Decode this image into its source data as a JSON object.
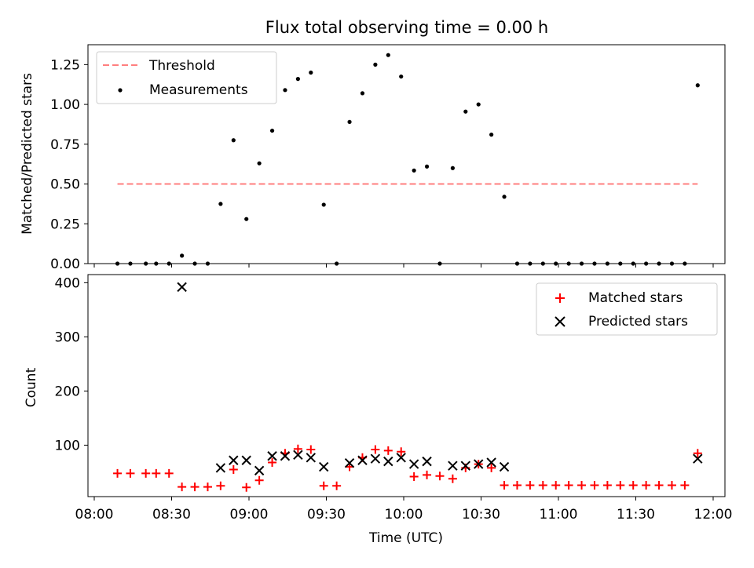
{
  "chart_data": [
    {
      "type": "scatter",
      "title": "Flux total observing time = 0.00 h",
      "xlabel": "",
      "ylabel": "Matched/Predicted stars",
      "xlim": [
        "08:00",
        "12:00"
      ],
      "ylim": [
        0,
        1.375
      ],
      "yticks": [
        "0.00",
        "0.25",
        "0.50",
        "0.75",
        "1.00",
        "1.25"
      ],
      "yticks_values": [
        0,
        0.25,
        0.5,
        0.75,
        1.0,
        1.25
      ],
      "legend": {
        "position": "top-left",
        "entries": [
          "Threshold",
          "Measurements"
        ]
      },
      "threshold": {
        "name": "Threshold",
        "value": 0.5,
        "x_start": "08:09",
        "x_end": "11:54",
        "color": "#ff7f7f"
      },
      "series": [
        {
          "name": "Measurements",
          "color": "#000000",
          "x": [
            "08:09",
            "08:14",
            "08:20",
            "08:24",
            "08:29",
            "08:34",
            "08:39",
            "08:44",
            "08:49",
            "08:54",
            "08:59",
            "09:04",
            "09:09",
            "09:14",
            "09:19",
            "09:24",
            "09:29",
            "09:34",
            "09:39",
            "09:44",
            "09:49",
            "09:54",
            "09:59",
            "10:04",
            "10:09",
            "10:14",
            "10:19",
            "10:24",
            "10:29",
            "10:34",
            "10:39",
            "10:44",
            "10:49",
            "10:54",
            "10:59",
            "11:04",
            "11:09",
            "11:14",
            "11:19",
            "11:24",
            "11:29",
            "11:34",
            "11:39",
            "11:44",
            "11:49",
            "11:54"
          ],
          "y": [
            0,
            0,
            0,
            0,
            0,
            0.05,
            0,
            0,
            0.375,
            0.775,
            0.28,
            0.63,
            0.835,
            1.09,
            1.16,
            1.2,
            0.37,
            0,
            0.89,
            1.07,
            1.25,
            1.31,
            1.175,
            0.585,
            0.61,
            0,
            0.6,
            0.955,
            1.0,
            0.81,
            0.42,
            0,
            0,
            0,
            0,
            0,
            0,
            0,
            0,
            0,
            0,
            0,
            0,
            0,
            0,
            1.12
          ]
        }
      ]
    },
    {
      "type": "scatter",
      "title": "",
      "xlabel": "Time (UTC)",
      "ylabel": "Count",
      "xlim": [
        "08:00",
        "12:00"
      ],
      "ylim": [
        5,
        415
      ],
      "xticks": [
        "08:00",
        "08:30",
        "09:00",
        "09:30",
        "10:00",
        "10:30",
        "11:00",
        "11:30",
        "12:00"
      ],
      "yticks": [
        "100",
        "200",
        "300",
        "400"
      ],
      "yticks_values": [
        100,
        200,
        300,
        400
      ],
      "legend": {
        "position": "top-right",
        "entries": [
          "Matched stars",
          "Predicted stars"
        ]
      },
      "series": [
        {
          "name": "Matched stars",
          "marker": "plus",
          "color": "#ff0000",
          "x": [
            "08:09",
            "08:14",
            "08:20",
            "08:24",
            "08:29",
            "08:34",
            "08:39",
            "08:44",
            "08:49",
            "08:54",
            "08:59",
            "09:04",
            "09:09",
            "09:14",
            "09:19",
            "09:24",
            "09:29",
            "09:34",
            "09:39",
            "09:44",
            "09:49",
            "09:54",
            "09:59",
            "10:04",
            "10:09",
            "10:14",
            "10:19",
            "10:24",
            "10:29",
            "10:34",
            "10:39",
            "10:44",
            "10:49",
            "10:54",
            "10:59",
            "11:04",
            "11:09",
            "11:14",
            "11:19",
            "11:24",
            "11:29",
            "11:34",
            "11:39",
            "11:44",
            "11:49",
            "11:54"
          ],
          "y": [
            48,
            48,
            48,
            48,
            48,
            23,
            23,
            23,
            25,
            55,
            22,
            35,
            68,
            85,
            93,
            92,
            25,
            25,
            60,
            77,
            92,
            90,
            88,
            42,
            45,
            43,
            38,
            58,
            65,
            58,
            26,
            26,
            26,
            26,
            26,
            26,
            26,
            26,
            26,
            26,
            26,
            26,
            26,
            26,
            26,
            85
          ]
        },
        {
          "name": "Predicted stars",
          "marker": "x",
          "color": "#000000",
          "x": [
            "08:34",
            "08:49",
            "08:54",
            "08:59",
            "09:04",
            "09:09",
            "09:14",
            "09:19",
            "09:24",
            "09:29",
            "09:39",
            "09:44",
            "09:49",
            "09:54",
            "09:59",
            "10:04",
            "10:09",
            "10:19",
            "10:24",
            "10:29",
            "10:34",
            "10:39",
            "11:54"
          ],
          "y": [
            392,
            58,
            72,
            72,
            53,
            80,
            80,
            82,
            77,
            60,
            67,
            72,
            75,
            70,
            77,
            65,
            70,
            62,
            62,
            65,
            68,
            60,
            75
          ]
        }
      ]
    }
  ]
}
